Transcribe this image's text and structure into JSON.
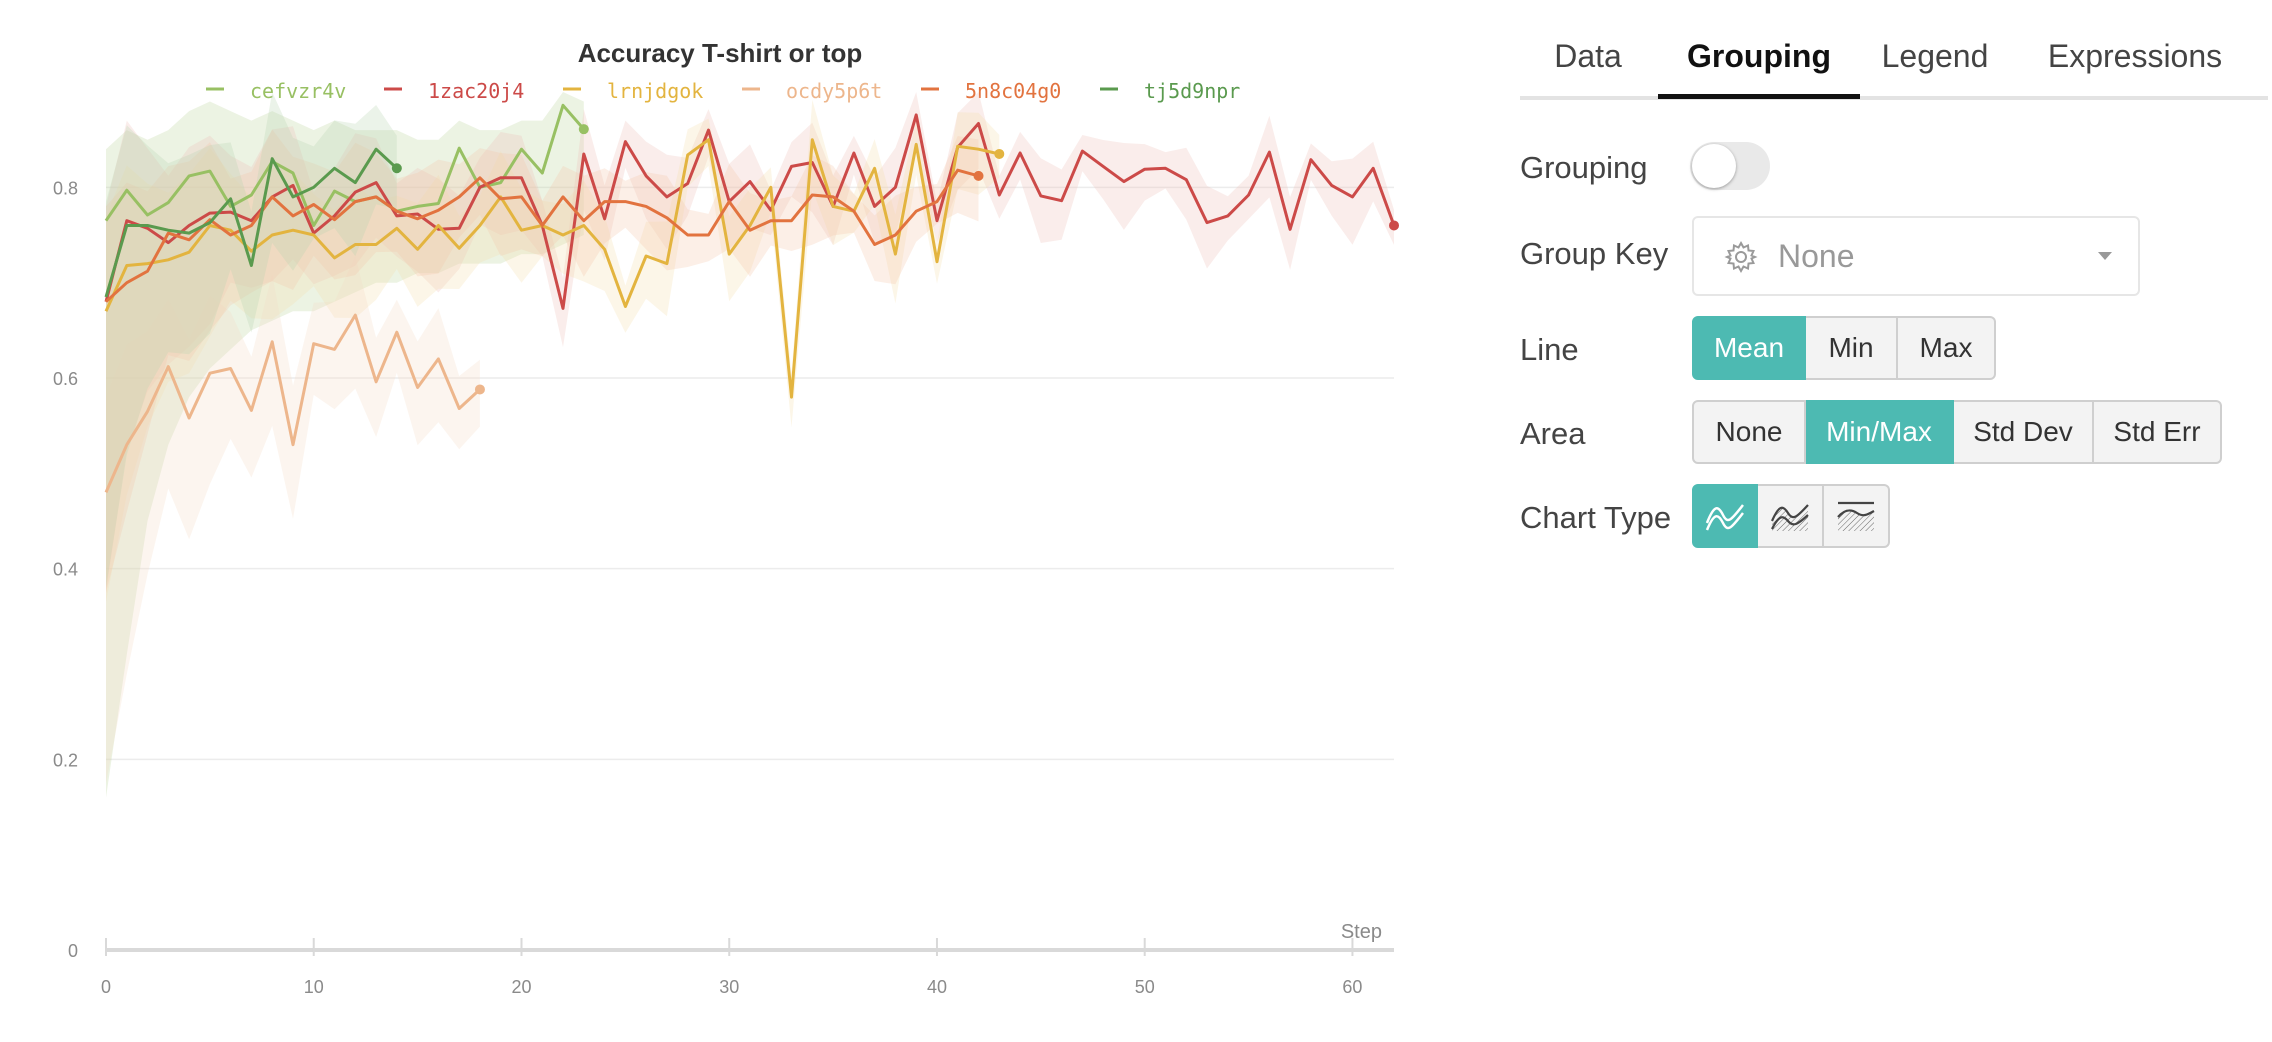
{
  "chart_data": {
    "type": "line",
    "title": "Accuracy T-shirt or top",
    "xlabel": "Step",
    "ylabel": "",
    "xlim": [
      0,
      62
    ],
    "ylim": [
      0,
      0.9
    ],
    "xticks": [
      0,
      10,
      20,
      30,
      40,
      50,
      60
    ],
    "yticks": [
      0,
      0.2,
      0.4,
      0.6,
      0.8
    ],
    "xtick_labels": [
      "0",
      "10",
      "20",
      "30",
      "40",
      "50",
      "60"
    ],
    "ytick_labels": [
      "0",
      "0.2",
      "0.4",
      "0.6",
      "0.8"
    ],
    "grid": true,
    "legend_position": "top",
    "area": "min/max band per series",
    "series": [
      {
        "name": "cefvzr4v",
        "color": "#98c063",
        "band_color": "#b9d49a",
        "values": [
          0.765,
          0.797,
          0.771,
          0.784,
          0.812,
          0.817,
          0.78,
          0.792,
          0.827,
          0.815,
          0.76,
          0.796,
          0.785,
          0.79,
          0.775,
          0.78,
          0.783,
          0.841,
          0.8,
          0.805,
          0.84,
          0.815,
          0.886,
          0.861
        ],
        "band": [
          [
            0.16,
            0.84
          ],
          [
            0.31,
            0.86
          ],
          [
            0.45,
            0.85
          ],
          [
            0.53,
            0.86
          ],
          [
            0.58,
            0.88
          ],
          [
            0.61,
            0.89
          ],
          [
            0.63,
            0.88
          ],
          [
            0.65,
            0.87
          ],
          [
            0.66,
            0.88
          ],
          [
            0.67,
            0.87
          ],
          [
            0.67,
            0.86
          ],
          [
            0.68,
            0.87
          ],
          [
            0.69,
            0.86
          ],
          [
            0.7,
            0.86
          ],
          [
            0.7,
            0.86
          ],
          [
            0.71,
            0.85
          ],
          [
            0.71,
            0.85
          ],
          [
            0.72,
            0.87
          ],
          [
            0.72,
            0.86
          ],
          [
            0.72,
            0.86
          ],
          [
            0.73,
            0.87
          ],
          [
            0.73,
            0.87
          ],
          [
            0.74,
            0.9
          ],
          [
            0.75,
            0.89
          ]
        ]
      },
      {
        "name": "1zac20j4",
        "color": "#cc4a48",
        "band_color": "#eec0b8",
        "values": [
          0.68,
          0.765,
          0.757,
          0.742,
          0.76,
          0.773,
          0.774,
          0.765,
          0.79,
          0.802,
          0.752,
          0.77,
          0.795,
          0.805,
          0.77,
          0.772,
          0.756,
          0.757,
          0.8,
          0.81,
          0.81,
          0.76,
          0.673,
          0.835,
          0.767,
          0.848,
          0.812,
          0.79,
          0.804,
          0.86,
          0.785,
          0.806,
          0.776,
          0.822,
          0.826,
          0.78,
          0.836,
          0.78,
          0.8,
          0.876,
          0.765,
          0.842,
          0.867,
          0.792,
          0.836,
          0.791,
          0.786,
          0.838,
          0.822,
          0.806,
          0.819,
          0.82,
          0.808,
          0.763,
          0.77,
          0.792,
          0.837,
          0.756,
          0.829,
          0.802,
          0.79,
          0.82,
          0.76
        ]
      },
      {
        "name": "lrnjdgok",
        "color": "#e3b43f",
        "band_color": "#f3dfae",
        "values": [
          0.67,
          0.718,
          0.72,
          0.724,
          0.732,
          0.76,
          0.755,
          0.733,
          0.75,
          0.755,
          0.75,
          0.726,
          0.74,
          0.74,
          0.757,
          0.735,
          0.76,
          0.736,
          0.76,
          0.79,
          0.755,
          0.76,
          0.75,
          0.76,
          0.735,
          0.675,
          0.728,
          0.72,
          0.834,
          0.85,
          0.73,
          0.76,
          0.8,
          0.58,
          0.85,
          0.78,
          0.775,
          0.82,
          0.73,
          0.845,
          0.722,
          0.843,
          0.84,
          0.835
        ]
      },
      {
        "name": "ocdy5p6t",
        "color": "#edb68c",
        "band_color": "#f6dcc6",
        "values": [
          0.48,
          0.53,
          0.565,
          0.612,
          0.558,
          0.605,
          0.61,
          0.566,
          0.638,
          0.53,
          0.636,
          0.63,
          0.666,
          0.596,
          0.648,
          0.59,
          0.62,
          0.568,
          0.588
        ]
      },
      {
        "name": "5n8c04g0",
        "color": "#e2733f",
        "band_color": "#f3c4a8",
        "values": [
          0.68,
          0.7,
          0.712,
          0.752,
          0.745,
          0.766,
          0.75,
          0.76,
          0.79,
          0.77,
          0.782,
          0.766,
          0.785,
          0.79,
          0.775,
          0.767,
          0.776,
          0.79,
          0.81,
          0.788,
          0.79,
          0.76,
          0.79,
          0.765,
          0.785,
          0.785,
          0.78,
          0.768,
          0.75,
          0.75,
          0.785,
          0.755,
          0.765,
          0.765,
          0.792,
          0.79,
          0.775,
          0.74,
          0.75,
          0.775,
          0.785,
          0.818,
          0.812
        ]
      },
      {
        "name": "tj5d9npr",
        "color": "#5a9a4e",
        "band_color": "#b8d3af",
        "values": [
          0.685,
          0.76,
          0.76,
          0.755,
          0.752,
          0.763,
          0.788,
          0.718,
          0.83,
          0.79,
          0.8,
          0.82,
          0.805,
          0.84,
          0.82
        ]
      }
    ]
  },
  "tabs": [
    {
      "label": "Data",
      "active": false
    },
    {
      "label": "Grouping",
      "active": true
    },
    {
      "label": "Legend",
      "active": false
    },
    {
      "label": "Expressions",
      "active": false
    }
  ],
  "grouping": {
    "grouping_label": "Grouping",
    "grouping_enabled": false,
    "group_key_label": "Group Key",
    "group_key_value": "None",
    "line_label": "Line",
    "line_options": [
      "Mean",
      "Min",
      "Max"
    ],
    "line_selected": "Mean",
    "area_label": "Area",
    "area_options": [
      "None",
      "Min/Max",
      "Std Dev",
      "Std Err"
    ],
    "area_selected": "Min/Max",
    "chart_type_label": "Chart Type",
    "chart_type_options": [
      "smooth-line-icon",
      "area-hatched-icon",
      "band-hatched-icon"
    ],
    "chart_type_selected": "smooth-line-icon"
  },
  "colors": {
    "accent": "#4dbab2",
    "grid": "#ececec",
    "axis": "#d9d9d9"
  }
}
